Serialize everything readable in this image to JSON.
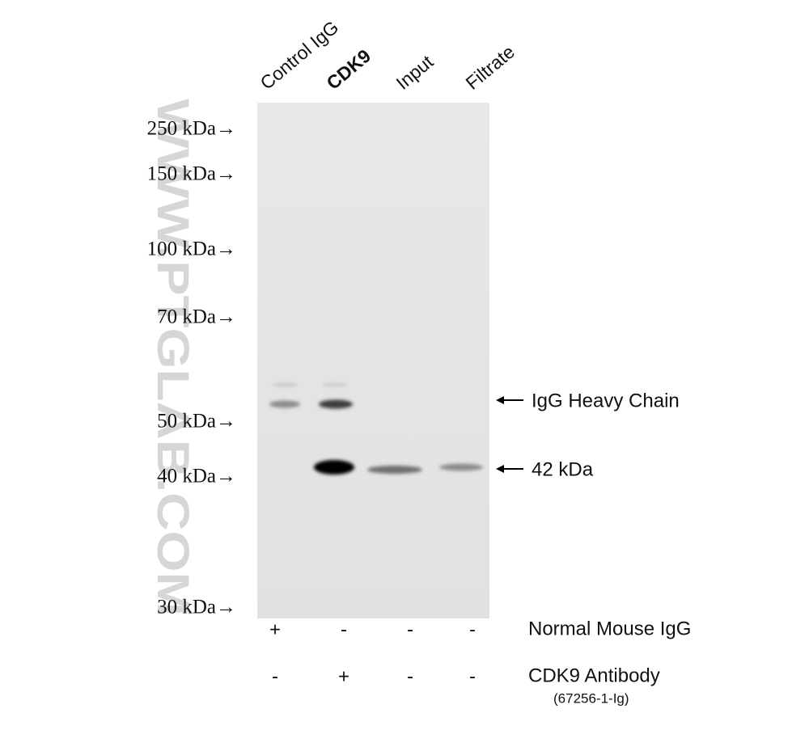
{
  "lanes": [
    "Control IgG",
    "CDK9",
    "Input",
    "Filtrate"
  ],
  "markers": [
    "250 kDa→",
    "150 kDa→",
    "100 kDa→",
    "70 kDa→",
    "50 kDa→",
    "40 kDa→",
    "30 kDa→"
  ],
  "annotations": [
    "IgG Heavy Chain",
    "42 kDa"
  ],
  "treatments": [
    {
      "label": "Normal Mouse IgG",
      "signs": [
        "+",
        "-",
        "-",
        "-"
      ]
    },
    {
      "label": "CDK9 Antibody",
      "sublabel": "(67256-1-Ig)",
      "signs": [
        "-",
        "+",
        "-",
        "-"
      ]
    }
  ],
  "watermark": "WWW.PTGLAB.COM"
}
